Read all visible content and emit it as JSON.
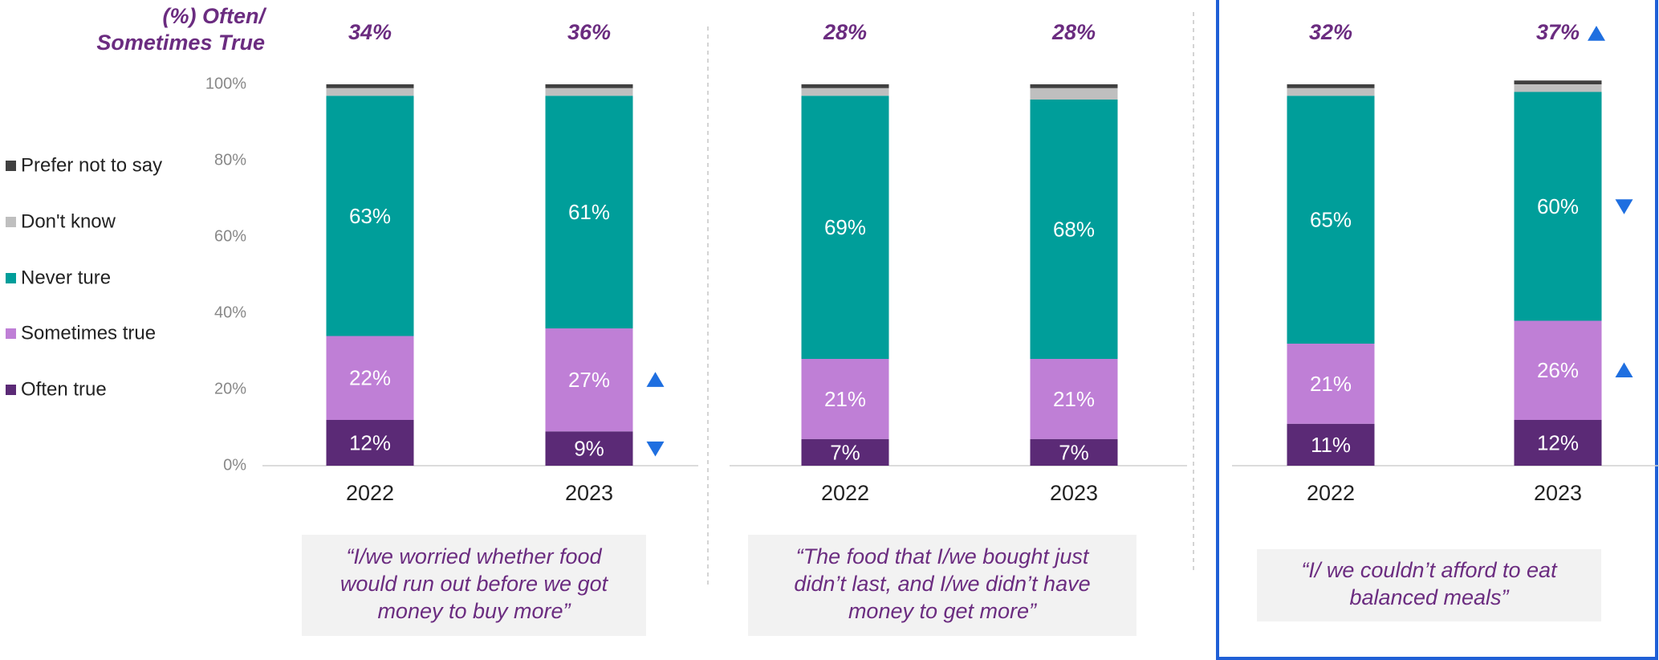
{
  "chart_data": [
    {
      "type": "bar",
      "stacked": true,
      "header": [
        "(%) Often/",
        "Sometimes True"
      ],
      "categories": [
        "2022",
        "2023"
      ],
      "top_labels": [
        "34%",
        "36%"
      ],
      "ylim": [
        0,
        100
      ],
      "yticks": [
        {
          "value": 0,
          "label": "0%"
        },
        {
          "value": 20,
          "label": "20%"
        },
        {
          "value": 40,
          "label": "40%"
        },
        {
          "value": 60,
          "label": "60%"
        },
        {
          "value": 80,
          "label": "80%"
        },
        {
          "value": 100,
          "label": "100%"
        }
      ],
      "legend": true,
      "series": [
        {
          "name": "Often true",
          "color": "#5b2a76",
          "values": [
            12,
            9
          ],
          "value_labels": [
            "12%",
            "9%"
          ]
        },
        {
          "name": "Sometimes true",
          "color": "#bf7fd6",
          "values": [
            22,
            27
          ],
          "value_labels": [
            "22%",
            "27%"
          ]
        },
        {
          "name": "Never ture",
          "color": "#009e9a",
          "values": [
            63,
            61
          ],
          "value_labels": [
            "63%",
            "61%"
          ]
        },
        {
          "name": "Don't know",
          "color": "#bfbfbf",
          "values": [
            2,
            2
          ]
        },
        {
          "name": "Prefer not to say",
          "color": "#404040",
          "values": [
            1,
            1
          ]
        }
      ],
      "markers": [
        {
          "category": "2023",
          "series": "Sometimes true",
          "direction": "up"
        },
        {
          "category": "2023",
          "series": "Often true",
          "direction": "down"
        }
      ],
      "quote": [
        "“I/we worried whether food",
        "would run out before we got",
        "money to buy more”"
      ]
    },
    {
      "type": "bar",
      "stacked": true,
      "categories": [
        "2022",
        "2023"
      ],
      "top_labels": [
        "28%",
        "28%"
      ],
      "ylim": [
        0,
        100
      ],
      "series": [
        {
          "name": "Often true",
          "color": "#5b2a76",
          "values": [
            7,
            7
          ],
          "value_labels": [
            "7%",
            "7%"
          ]
        },
        {
          "name": "Sometimes true",
          "color": "#bf7fd6",
          "values": [
            21,
            21
          ],
          "value_labels": [
            "21%",
            "21%"
          ]
        },
        {
          "name": "Never ture",
          "color": "#009e9a",
          "values": [
            69,
            68
          ],
          "value_labels": [
            "69%",
            "68%"
          ]
        },
        {
          "name": "Don't know",
          "color": "#bfbfbf",
          "values": [
            2,
            3
          ]
        },
        {
          "name": "Prefer not to say",
          "color": "#404040",
          "values": [
            1,
            1
          ]
        }
      ],
      "quote": [
        "“The food that I/we bought just",
        "didn’t last, and I/we didn’t have",
        "money to get more”"
      ]
    },
    {
      "type": "bar",
      "stacked": true,
      "highlight": "#1f5fd6",
      "categories": [
        "2022",
        "2023"
      ],
      "top_labels": [
        "32%",
        "37%"
      ],
      "ylim": [
        0,
        100
      ],
      "series": [
        {
          "name": "Often true",
          "color": "#5b2a76",
          "values": [
            11,
            12
          ],
          "value_labels": [
            "11%",
            "12%"
          ]
        },
        {
          "name": "Sometimes true",
          "color": "#bf7fd6",
          "values": [
            21,
            26
          ],
          "value_labels": [
            "21%",
            "26%"
          ]
        },
        {
          "name": "Never ture",
          "color": "#009e9a",
          "values": [
            65,
            60
          ],
          "value_labels": [
            "65%",
            "60%"
          ]
        },
        {
          "name": "Don't know",
          "color": "#bfbfbf",
          "values": [
            2,
            2
          ]
        },
        {
          "name": "Prefer not to say",
          "color": "#404040",
          "values": [
            1,
            1
          ]
        }
      ],
      "markers": [
        {
          "category": "2023",
          "top": true,
          "direction": "up"
        },
        {
          "category": "2023",
          "series": "Never ture",
          "direction": "down"
        },
        {
          "category": "2023",
          "series": "Sometimes true",
          "direction": "up"
        }
      ],
      "quote": [
        "“I/ we couldn’t afford to eat",
        "balanced meals”"
      ]
    }
  ]
}
